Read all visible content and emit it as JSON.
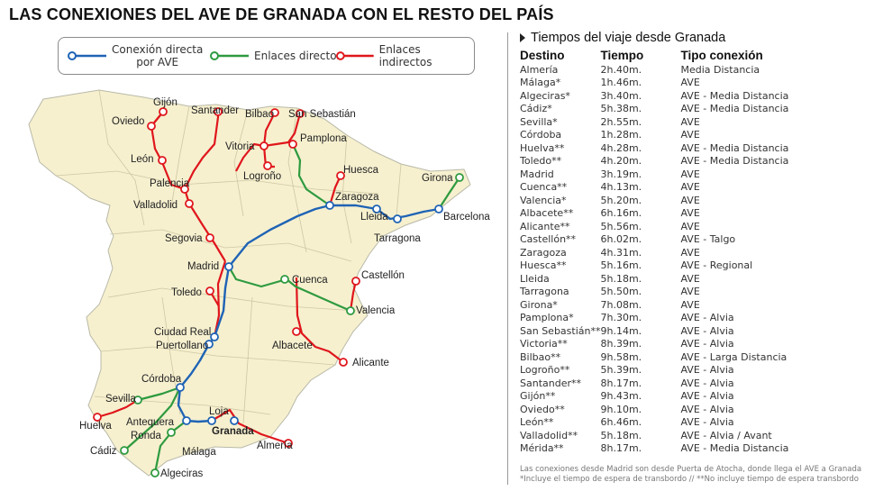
{
  "title": "LAS CONEXIONES DEL AVE DE GRANADA CON EL RESTO DEL PAÍS",
  "legend": {
    "direct_ave": "Conexión directa por AVE",
    "direct_ave_line1": "Conexión directa",
    "direct_ave_line2": "por AVE",
    "direct_links": "Enlaces directos",
    "indirect_links": "Enlaces indirectos",
    "colors": {
      "ave": "#1f63b5",
      "direct": "#2e9a3f",
      "indirect": "#e0161c"
    }
  },
  "map": {
    "land_color": "#f6f0cf",
    "border_color": "#b9b9a8",
    "cities": {
      "gijon": "Gijón",
      "oviedo": "Oviedo",
      "santander": "Santander",
      "bilbao": "Bilbao",
      "san_sebastian": "San Sebastián",
      "vitoria": "Vitoria",
      "pamplona": "Pamplona",
      "leon": "León",
      "logrono": "Logroño",
      "huesca": "Huesca",
      "girona": "Girona",
      "palencia": "Palencia",
      "zaragoza": "Zaragoza",
      "valladolid": "Valladolid",
      "lleida": "Lleida",
      "barcelona": "Barcelona",
      "tarragona": "Tarragona",
      "segovia": "Segovia",
      "madrid": "Madrid",
      "castellon": "Castellón",
      "cuenca": "Cuenca",
      "toledo": "Toledo",
      "valencia": "Valencia",
      "ciudad_real": "Ciudad Real",
      "puertollano": "Puertollano",
      "albacete": "Albacete",
      "alicante": "Alicante",
      "cordoba": "Córdoba",
      "sevilla": "Sevilla",
      "antequera": "Antequera",
      "loja": "Loja",
      "huelva": "Huelva",
      "ronda": "Ronda",
      "granada": "Granada",
      "almeria": "Almería",
      "cadiz": "Cádiz",
      "malaga": "Málaga",
      "algeciras": "Algeciras"
    }
  },
  "panel": {
    "title": "Tiempos del viaje desde Granada",
    "headers": {
      "destino": "Destino",
      "tiempo": "Tiempo",
      "tipo": "Tipo conexión"
    },
    "rows": [
      {
        "d": "Almería",
        "t": "2h.40m.",
        "c": "Media Distancia"
      },
      {
        "d": "Málaga*",
        "t": "1h.46m.",
        "c": "AVE"
      },
      {
        "d": "Algeciras*",
        "t": "3h.40m.",
        "c": "AVE - Media Distancia"
      },
      {
        "d": "Cádiz*",
        "t": "5h.38m.",
        "c": "AVE - Media Distancia"
      },
      {
        "d": "Sevilla*",
        "t": "2h.55m.",
        "c": "AVE"
      },
      {
        "d": "Córdoba",
        "t": "1h.28m.",
        "c": "AVE"
      },
      {
        "d": "Huelva**",
        "t": "4h.28m.",
        "c": "AVE - Media Distancia"
      },
      {
        "d": "Toledo**",
        "t": "4h.20m.",
        "c": "AVE - Media Distancia"
      },
      {
        "d": "Madrid",
        "t": "3h.19m.",
        "c": "AVE"
      },
      {
        "d": "Cuenca**",
        "t": "4h.13m.",
        "c": "AVE"
      },
      {
        "d": "Valencia*",
        "t": "5h.20m.",
        "c": "AVE"
      },
      {
        "d": "Albacete**",
        "t": "6h.16m.",
        "c": "AVE"
      },
      {
        "d": "Alicante**",
        "t": "5h.56m.",
        "c": "AVE"
      },
      {
        "d": "Castellón**",
        "t": "6h.02m.",
        "c": "AVE - Talgo"
      },
      {
        "d": "Zaragoza",
        "t": "4h.31m.",
        "c": "AVE"
      },
      {
        "d": "Huesca**",
        "t": "5h.16m.",
        "c": "AVE - Regional"
      },
      {
        "d": "Lleida",
        "t": "5h.18m.",
        "c": "AVE"
      },
      {
        "d": "Tarragona",
        "t": "5h.50m.",
        "c": "AVE"
      },
      {
        "d": "Girona*",
        "t": "7h.08m.",
        "c": "AVE"
      },
      {
        "d": "Pamplona*",
        "t": "7h.30m.",
        "c": "AVE - Alvia"
      },
      {
        "d": "San Sebastián**",
        "t": "9h.14m.",
        "c": "AVE - Alvia"
      },
      {
        "d": "Victoria**",
        "t": "8h.39m.",
        "c": "AVE - Alvia"
      },
      {
        "d": "Bilbao**",
        "t": "9h.58m.",
        "c": "AVE - Larga Distancia"
      },
      {
        "d": "Logroño**",
        "t": "5h.39m.",
        "c": "AVE - Alvia"
      },
      {
        "d": "Santander**",
        "t": "8h.17m.",
        "c": "AVE - Alvia"
      },
      {
        "d": "Gijón**",
        "t": "9h.43m.",
        "c": "AVE - Alvia"
      },
      {
        "d": "Oviedo**",
        "t": "9h.10m.",
        "c": "AVE - Alvia"
      },
      {
        "d": "León**",
        "t": "6h.46m.",
        "c": "AVE - Alvia"
      },
      {
        "d": "Valladolid**",
        "t": "5h.18m.",
        "c": "AVE - Alvia / Avant"
      },
      {
        "d": "Mérida**",
        "t": "8h.17m.",
        "c": "AVE - Media Distancia"
      }
    ],
    "note1": "Las conexiones desde Madrid son desde Puerta de Atocha, donde llega el AVE a Granada",
    "note2": "*Incluye el tiempo de espera de transbordo // **No incluye tiempo de espera transbordo"
  }
}
